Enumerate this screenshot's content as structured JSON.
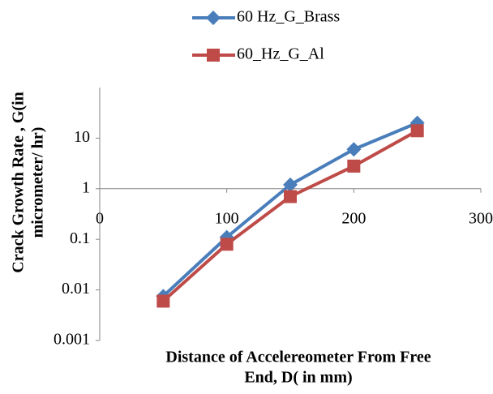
{
  "chart_data": {
    "type": "line",
    "ylabel": [
      "Crack Growth Rate , G(in",
      "micrometer/ hr)"
    ],
    "xlabel": [
      "Distance of Accelereometer From Free",
      "End, D( in mm)"
    ],
    "x": [
      50,
      100,
      150,
      200,
      250
    ],
    "series": [
      {
        "name": "60 Hz_G_Brass",
        "color": "#4a7ebb",
        "marker": "diamond",
        "values": [
          0.0075,
          0.11,
          1.2,
          6,
          20
        ]
      },
      {
        "name": "60_Hz_G_Al",
        "color": "#be4b48",
        "marker": "square",
        "values": [
          0.006,
          0.08,
          0.7,
          2.8,
          14
        ]
      }
    ],
    "xlim": [
      0,
      300
    ],
    "xticks": [
      0,
      100,
      200,
      300
    ],
    "ylim": [
      0.001,
      100
    ],
    "yticks": [
      0.001,
      0.01,
      0.1,
      1,
      10
    ],
    "ylog": true,
    "xaxis_at": 1,
    "grid": false,
    "legend": "top"
  }
}
